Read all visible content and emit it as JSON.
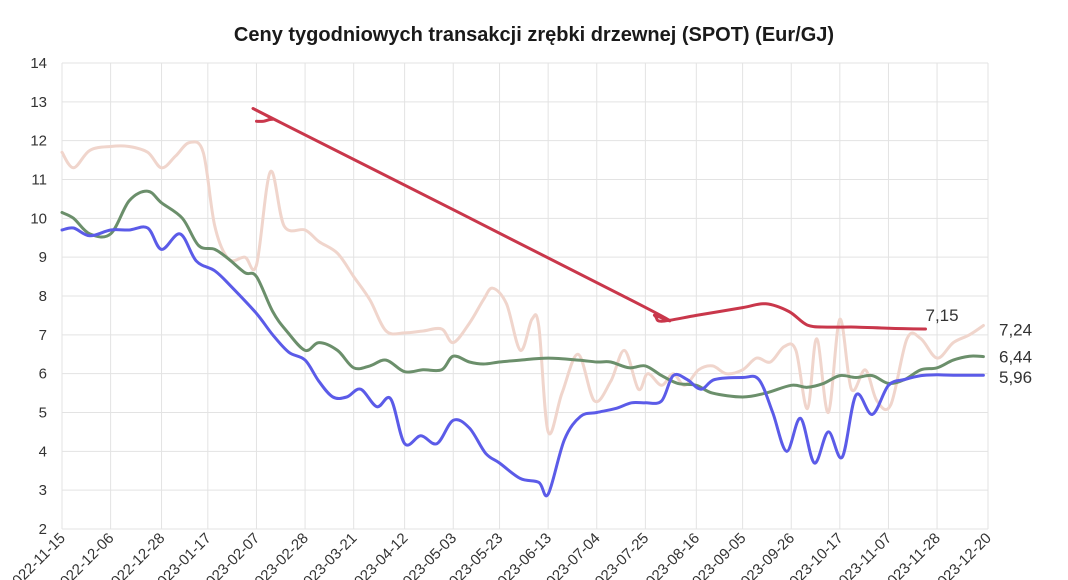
{
  "chart_data": {
    "type": "line",
    "title": "Ceny tygodniowych transakcji zrębki drzewnej (SPOT) (Eur/GJ)",
    "xlabel": "",
    "ylabel": "",
    "ylim": [
      2,
      14
    ],
    "yticks": [
      "2",
      "3",
      "4",
      "5",
      "6",
      "7",
      "8",
      "9",
      "10",
      "11",
      "12",
      "13",
      "14"
    ],
    "x_range": [
      "2022-11-15",
      "2023-12-20"
    ],
    "xticks": [
      "2022-11-15",
      "2022-12-06",
      "2022-12-28",
      "2023-01-17",
      "2023-02-07",
      "2023-02-28",
      "2023-03-21",
      "2023-04-12",
      "2023-05-03",
      "2023-05-23",
      "2023-06-13",
      "2023-07-04",
      "2023-07-25",
      "2023-08-16",
      "2023-09-05",
      "2023-09-26",
      "2023-10-17",
      "2023-11-07",
      "2023-11-28",
      "2023-12-20"
    ],
    "grid": true,
    "series": [
      {
        "color": "#f0d5cc",
        "end_label": "7,24",
        "points": [
          [
            "2022-11-15",
            11.7
          ],
          [
            "2022-11-20",
            11.3
          ],
          [
            "2022-11-27",
            11.75
          ],
          [
            "2022-12-06",
            11.85
          ],
          [
            "2022-12-14",
            11.85
          ],
          [
            "2022-12-22",
            11.7
          ],
          [
            "2022-12-28",
            11.3
          ],
          [
            "2023-01-03",
            11.6
          ],
          [
            "2023-01-09",
            11.95
          ],
          [
            "2023-01-15",
            11.7
          ],
          [
            "2023-01-20",
            9.8
          ],
          [
            "2023-01-26",
            8.95
          ],
          [
            "2023-02-02",
            9.0
          ],
          [
            "2023-02-07",
            8.8
          ],
          [
            "2023-02-13",
            11.2
          ],
          [
            "2023-02-19",
            9.8
          ],
          [
            "2023-02-28",
            9.7
          ],
          [
            "2023-03-06",
            9.4
          ],
          [
            "2023-03-14",
            9.1
          ],
          [
            "2023-03-21",
            8.5
          ],
          [
            "2023-03-28",
            7.9
          ],
          [
            "2023-04-04",
            7.1
          ],
          [
            "2023-04-12",
            7.05
          ],
          [
            "2023-04-20",
            7.1
          ],
          [
            "2023-04-28",
            7.15
          ],
          [
            "2023-05-03",
            6.8
          ],
          [
            "2023-05-10",
            7.3
          ],
          [
            "2023-05-16",
            7.9
          ],
          [
            "2023-05-20",
            8.2
          ],
          [
            "2023-05-26",
            7.8
          ],
          [
            "2023-06-01",
            6.6
          ],
          [
            "2023-06-06",
            7.4
          ],
          [
            "2023-06-09",
            7.2
          ],
          [
            "2023-06-13",
            4.5
          ],
          [
            "2023-06-19",
            5.5
          ],
          [
            "2023-06-26",
            6.5
          ],
          [
            "2023-07-03",
            5.3
          ],
          [
            "2023-07-10",
            5.8
          ],
          [
            "2023-07-16",
            6.6
          ],
          [
            "2023-07-22",
            5.6
          ],
          [
            "2023-07-26",
            6.0
          ],
          [
            "2023-08-01",
            5.7
          ],
          [
            "2023-08-06",
            6.0
          ],
          [
            "2023-08-11",
            5.7
          ],
          [
            "2023-08-17",
            6.1
          ],
          [
            "2023-08-23",
            6.2
          ],
          [
            "2023-08-29",
            6.0
          ],
          [
            "2023-09-05",
            6.1
          ],
          [
            "2023-09-11",
            6.4
          ],
          [
            "2023-09-17",
            6.3
          ],
          [
            "2023-09-23",
            6.7
          ],
          [
            "2023-09-28",
            6.6
          ],
          [
            "2023-10-03",
            5.1
          ],
          [
            "2023-10-07",
            6.9
          ],
          [
            "2023-10-12",
            5.0
          ],
          [
            "2023-10-17",
            7.4
          ],
          [
            "2023-10-22",
            5.6
          ],
          [
            "2023-10-28",
            6.1
          ],
          [
            "2023-11-02",
            5.3
          ],
          [
            "2023-11-08",
            5.2
          ],
          [
            "2023-11-15",
            6.9
          ],
          [
            "2023-11-21",
            6.9
          ],
          [
            "2023-11-28",
            6.4
          ],
          [
            "2023-12-05",
            6.8
          ],
          [
            "2023-12-12",
            7.0
          ],
          [
            "2023-12-18",
            7.24
          ]
        ]
      },
      {
        "color": "#6b8f6b",
        "end_label": "6,44",
        "points": [
          [
            "2022-11-15",
            10.15
          ],
          [
            "2022-11-20",
            10.0
          ],
          [
            "2022-11-27",
            9.6
          ],
          [
            "2022-12-06",
            9.6
          ],
          [
            "2022-12-14",
            10.45
          ],
          [
            "2022-12-22",
            10.7
          ],
          [
            "2022-12-28",
            10.4
          ],
          [
            "2023-01-06",
            10.0
          ],
          [
            "2023-01-13",
            9.3
          ],
          [
            "2023-01-20",
            9.2
          ],
          [
            "2023-01-26",
            8.95
          ],
          [
            "2023-02-02",
            8.6
          ],
          [
            "2023-02-07",
            8.5
          ],
          [
            "2023-02-14",
            7.6
          ],
          [
            "2023-02-20",
            7.1
          ],
          [
            "2023-02-28",
            6.6
          ],
          [
            "2023-03-06",
            6.8
          ],
          [
            "2023-03-14",
            6.6
          ],
          [
            "2023-03-21",
            6.15
          ],
          [
            "2023-03-28",
            6.2
          ],
          [
            "2023-04-04",
            6.35
          ],
          [
            "2023-04-12",
            6.05
          ],
          [
            "2023-04-20",
            6.1
          ],
          [
            "2023-04-28",
            6.1
          ],
          [
            "2023-05-03",
            6.45
          ],
          [
            "2023-05-10",
            6.3
          ],
          [
            "2023-05-16",
            6.25
          ],
          [
            "2023-05-23",
            6.3
          ],
          [
            "2023-06-01",
            6.35
          ],
          [
            "2023-06-13",
            6.4
          ],
          [
            "2023-06-26",
            6.35
          ],
          [
            "2023-07-04",
            6.3
          ],
          [
            "2023-07-10",
            6.3
          ],
          [
            "2023-07-18",
            6.15
          ],
          [
            "2023-07-25",
            6.2
          ],
          [
            "2023-08-01",
            5.95
          ],
          [
            "2023-08-08",
            5.75
          ],
          [
            "2023-08-16",
            5.7
          ],
          [
            "2023-08-23",
            5.5
          ],
          [
            "2023-09-05",
            5.4
          ],
          [
            "2023-09-15",
            5.5
          ],
          [
            "2023-09-26",
            5.7
          ],
          [
            "2023-10-03",
            5.65
          ],
          [
            "2023-10-10",
            5.75
          ],
          [
            "2023-10-17",
            5.95
          ],
          [
            "2023-10-24",
            5.9
          ],
          [
            "2023-10-31",
            5.95
          ],
          [
            "2023-11-07",
            5.75
          ],
          [
            "2023-11-14",
            5.85
          ],
          [
            "2023-11-21",
            6.1
          ],
          [
            "2023-11-28",
            6.15
          ],
          [
            "2023-12-05",
            6.35
          ],
          [
            "2023-12-12",
            6.45
          ],
          [
            "2023-12-18",
            6.44
          ]
        ]
      },
      {
        "color": "#5b5be8",
        "end_label": "5,96",
        "points": [
          [
            "2022-11-15",
            9.7
          ],
          [
            "2022-11-20",
            9.75
          ],
          [
            "2022-11-27",
            9.55
          ],
          [
            "2022-12-06",
            9.7
          ],
          [
            "2022-12-14",
            9.7
          ],
          [
            "2022-12-22",
            9.75
          ],
          [
            "2022-12-28",
            9.2
          ],
          [
            "2023-01-05",
            9.6
          ],
          [
            "2023-01-12",
            8.9
          ],
          [
            "2023-01-20",
            8.65
          ],
          [
            "2023-01-27",
            8.25
          ],
          [
            "2023-02-07",
            7.55
          ],
          [
            "2023-02-14",
            7.0
          ],
          [
            "2023-02-21",
            6.55
          ],
          [
            "2023-02-28",
            6.35
          ],
          [
            "2023-03-06",
            5.8
          ],
          [
            "2023-03-12",
            5.4
          ],
          [
            "2023-03-18",
            5.4
          ],
          [
            "2023-03-24",
            5.6
          ],
          [
            "2023-03-31",
            5.15
          ],
          [
            "2023-04-06",
            5.35
          ],
          [
            "2023-04-12",
            4.2
          ],
          [
            "2023-04-19",
            4.4
          ],
          [
            "2023-04-26",
            4.2
          ],
          [
            "2023-05-03",
            4.8
          ],
          [
            "2023-05-10",
            4.6
          ],
          [
            "2023-05-17",
            3.95
          ],
          [
            "2023-05-23",
            3.7
          ],
          [
            "2023-06-01",
            3.3
          ],
          [
            "2023-06-09",
            3.2
          ],
          [
            "2023-06-13",
            2.9
          ],
          [
            "2023-06-20",
            4.3
          ],
          [
            "2023-06-27",
            4.9
          ],
          [
            "2023-07-04",
            5.0
          ],
          [
            "2023-07-12",
            5.1
          ],
          [
            "2023-07-19",
            5.25
          ],
          [
            "2023-07-25",
            5.25
          ],
          [
            "2023-08-01",
            5.3
          ],
          [
            "2023-08-06",
            5.95
          ],
          [
            "2023-08-12",
            5.85
          ],
          [
            "2023-08-18",
            5.6
          ],
          [
            "2023-08-24",
            5.85
          ],
          [
            "2023-09-05",
            5.9
          ],
          [
            "2023-09-12",
            5.85
          ],
          [
            "2023-09-18",
            5.0
          ],
          [
            "2023-09-24",
            4.0
          ],
          [
            "2023-09-30",
            4.85
          ],
          [
            "2023-10-06",
            3.7
          ],
          [
            "2023-10-12",
            4.5
          ],
          [
            "2023-10-18",
            3.85
          ],
          [
            "2023-10-24",
            5.45
          ],
          [
            "2023-10-31",
            4.95
          ],
          [
            "2023-11-07",
            5.7
          ],
          [
            "2023-11-14",
            5.85
          ],
          [
            "2023-11-21",
            5.95
          ],
          [
            "2023-11-28",
            5.97
          ],
          [
            "2023-12-05",
            5.96
          ],
          [
            "2023-12-18",
            5.96
          ]
        ]
      },
      {
        "color": "#c9374b",
        "end_label": "7,15",
        "points": [
          [
            "2023-02-07",
            12.5
          ],
          [
            "2023-02-10",
            12.5
          ],
          [
            "2023-02-14",
            12.55
          ],
          [
            "2023-02-18",
            12.45
          ],
          [
            "2023-07-22",
            7.8
          ],
          [
            "2023-07-29",
            7.5
          ],
          [
            "2023-08-01",
            7.35
          ],
          [
            "2023-08-16",
            7.5
          ],
          [
            "2023-09-05",
            7.7
          ],
          [
            "2023-09-15",
            7.8
          ],
          [
            "2023-09-25",
            7.6
          ],
          [
            "2023-10-03",
            7.25
          ],
          [
            "2023-10-12",
            7.2
          ],
          [
            "2023-10-24",
            7.2
          ],
          [
            "2023-11-07",
            7.17
          ],
          [
            "2023-11-23",
            7.15
          ]
        ]
      }
    ]
  }
}
